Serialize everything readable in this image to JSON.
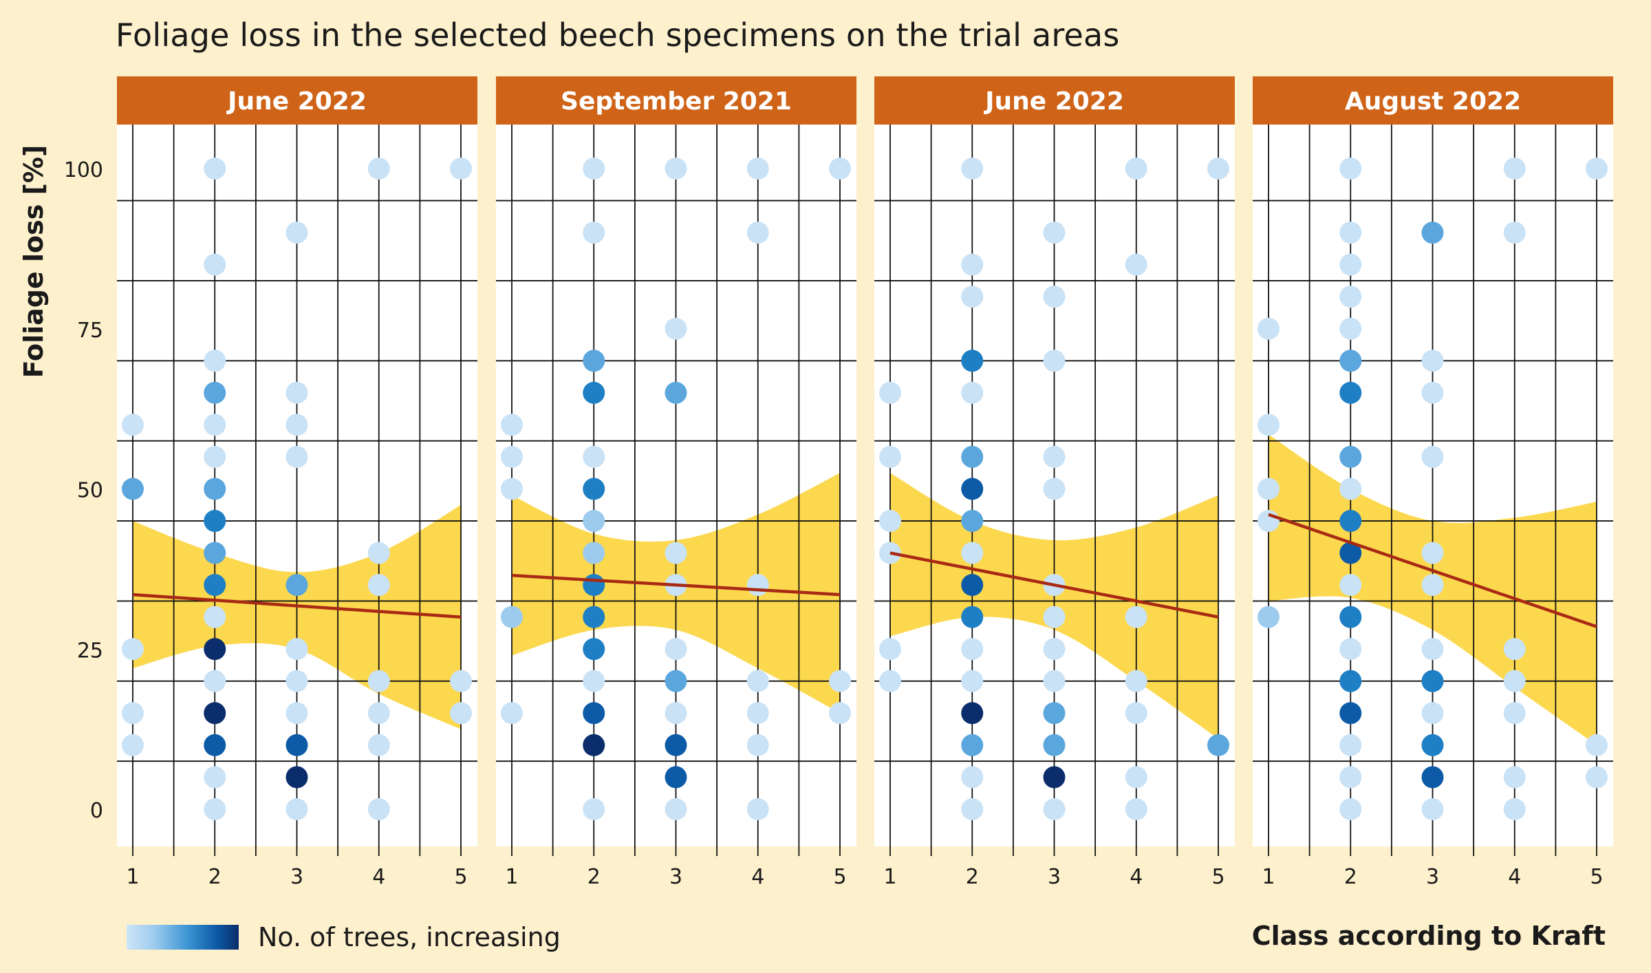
{
  "title": "Foliage loss in the selected beech specimens on the trial areas",
  "legend": {
    "label": "No. of trees, increasing"
  },
  "colors": {
    "background": "#fdf0cc",
    "header": "#cf6318",
    "band": "#fcd84e",
    "trend": "#a82a14",
    "plot_bg": "#ffffff",
    "grid": "#111111",
    "scale": [
      "#c9e2f6",
      "#9ccbee",
      "#5aa6dd",
      "#1e7fc5",
      "#0d5aa6",
      "#0b2d6b"
    ]
  },
  "chart_data": {
    "type": "scatter",
    "title": "Foliage loss in the selected beech specimens on the trial areas",
    "ylabel": "Foliage loss [%]",
    "xlabel": "Class according to Kraft",
    "ylim": [
      -5,
      107
    ],
    "xlim": [
      0.8,
      5.2
    ],
    "x_ticks": [
      1,
      2,
      3,
      4,
      5
    ],
    "y_ticks": [
      0,
      25,
      50,
      75,
      100
    ],
    "color_legend": "No. of trees, increasing",
    "panels": [
      {
        "name": "June 2022",
        "trend": [
          [
            1,
            33.5
          ],
          [
            5,
            30
          ]
        ],
        "band_upper": [
          [
            1,
            45
          ],
          [
            2,
            40
          ],
          [
            3,
            37
          ],
          [
            4,
            40
          ],
          [
            5,
            47.5
          ]
        ],
        "band_lower": [
          [
            1,
            22
          ],
          [
            2,
            25.5
          ],
          [
            3,
            25
          ],
          [
            4,
            18
          ],
          [
            5,
            12.5
          ]
        ],
        "points": [
          [
            1,
            60,
            0
          ],
          [
            1,
            50,
            2
          ],
          [
            1,
            25,
            0
          ],
          [
            1,
            15,
            0
          ],
          [
            1,
            10,
            0
          ],
          [
            2,
            100,
            0
          ],
          [
            2,
            85,
            0
          ],
          [
            2,
            70,
            0
          ],
          [
            2,
            65,
            2
          ],
          [
            2,
            60,
            0
          ],
          [
            2,
            55,
            0
          ],
          [
            2,
            50,
            2
          ],
          [
            2,
            45,
            3
          ],
          [
            2,
            40,
            2
          ],
          [
            2,
            35,
            3
          ],
          [
            2,
            30,
            0
          ],
          [
            2,
            25,
            5
          ],
          [
            2,
            20,
            0
          ],
          [
            2,
            15,
            5
          ],
          [
            2,
            10,
            4
          ],
          [
            2,
            5,
            0
          ],
          [
            2,
            0,
            0
          ],
          [
            3,
            90,
            0
          ],
          [
            3,
            65,
            0
          ],
          [
            3,
            60,
            0
          ],
          [
            3,
            55,
            0
          ],
          [
            3,
            35,
            2
          ],
          [
            3,
            25,
            0
          ],
          [
            3,
            20,
            0
          ],
          [
            3,
            15,
            0
          ],
          [
            3,
            10,
            4
          ],
          [
            3,
            5,
            5
          ],
          [
            3,
            0,
            0
          ],
          [
            4,
            100,
            0
          ],
          [
            4,
            40,
            0
          ],
          [
            4,
            35,
            0
          ],
          [
            4,
            20,
            0
          ],
          [
            4,
            15,
            0
          ],
          [
            4,
            10,
            0
          ],
          [
            4,
            0,
            0
          ],
          [
            5,
            100,
            0
          ],
          [
            5,
            20,
            0
          ],
          [
            5,
            15,
            0
          ]
        ]
      },
      {
        "name": "September 2021",
        "trend": [
          [
            1,
            36.5
          ],
          [
            5,
            33.5
          ]
        ],
        "band_upper": [
          [
            1,
            49
          ],
          [
            2,
            43
          ],
          [
            3,
            42
          ],
          [
            4,
            46
          ],
          [
            5,
            52.5
          ]
        ],
        "band_lower": [
          [
            1,
            24
          ],
          [
            2,
            28
          ],
          [
            3,
            28
          ],
          [
            4,
            22
          ],
          [
            5,
            15
          ]
        ],
        "points": [
          [
            1,
            60,
            0
          ],
          [
            1,
            55,
            0
          ],
          [
            1,
            50,
            0
          ],
          [
            1,
            30,
            1
          ],
          [
            1,
            15,
            0
          ],
          [
            2,
            100,
            0
          ],
          [
            2,
            90,
            0
          ],
          [
            2,
            70,
            2
          ],
          [
            2,
            65,
            3
          ],
          [
            2,
            55,
            0
          ],
          [
            2,
            50,
            3
          ],
          [
            2,
            45,
            1
          ],
          [
            2,
            40,
            1
          ],
          [
            2,
            35,
            3
          ],
          [
            2,
            30,
            3
          ],
          [
            2,
            25,
            3
          ],
          [
            2,
            20,
            0
          ],
          [
            2,
            15,
            4
          ],
          [
            2,
            10,
            5
          ],
          [
            2,
            0,
            0
          ],
          [
            3,
            100,
            0
          ],
          [
            3,
            75,
            0
          ],
          [
            3,
            65,
            2
          ],
          [
            3,
            40,
            0
          ],
          [
            3,
            35,
            0
          ],
          [
            3,
            25,
            0
          ],
          [
            3,
            20,
            2
          ],
          [
            3,
            15,
            0
          ],
          [
            3,
            10,
            4
          ],
          [
            3,
            5,
            4
          ],
          [
            3,
            0,
            0
          ],
          [
            4,
            100,
            0
          ],
          [
            4,
            90,
            0
          ],
          [
            4,
            35,
            0
          ],
          [
            4,
            20,
            0
          ],
          [
            4,
            15,
            0
          ],
          [
            4,
            10,
            0
          ],
          [
            4,
            0,
            0
          ],
          [
            5,
            100,
            0
          ],
          [
            5,
            20,
            0
          ],
          [
            5,
            15,
            0
          ]
        ]
      },
      {
        "name": "June 2022",
        "trend": [
          [
            1,
            40
          ],
          [
            5,
            30
          ]
        ],
        "band_upper": [
          [
            1,
            52.5
          ],
          [
            2,
            45
          ],
          [
            3,
            42
          ],
          [
            4,
            44
          ],
          [
            5,
            49
          ]
        ],
        "band_lower": [
          [
            1,
            27
          ],
          [
            2,
            30
          ],
          [
            3,
            28
          ],
          [
            4,
            20
          ],
          [
            5,
            11
          ]
        ],
        "points": [
          [
            1,
            65,
            0
          ],
          [
            1,
            55,
            0
          ],
          [
            1,
            45,
            0
          ],
          [
            1,
            40,
            0
          ],
          [
            1,
            25,
            0
          ],
          [
            1,
            20,
            0
          ],
          [
            2,
            100,
            0
          ],
          [
            2,
            85,
            0
          ],
          [
            2,
            80,
            0
          ],
          [
            2,
            70,
            3
          ],
          [
            2,
            65,
            0
          ],
          [
            2,
            55,
            2
          ],
          [
            2,
            50,
            4
          ],
          [
            2,
            45,
            2
          ],
          [
            2,
            40,
            0
          ],
          [
            2,
            35,
            4
          ],
          [
            2,
            30,
            3
          ],
          [
            2,
            25,
            0
          ],
          [
            2,
            20,
            0
          ],
          [
            2,
            15,
            5
          ],
          [
            2,
            10,
            2
          ],
          [
            2,
            5,
            0
          ],
          [
            2,
            0,
            0
          ],
          [
            3,
            90,
            0
          ],
          [
            3,
            80,
            0
          ],
          [
            3,
            70,
            0
          ],
          [
            3,
            55,
            0
          ],
          [
            3,
            50,
            0
          ],
          [
            3,
            35,
            0
          ],
          [
            3,
            30,
            0
          ],
          [
            3,
            25,
            0
          ],
          [
            3,
            20,
            0
          ],
          [
            3,
            15,
            2
          ],
          [
            3,
            10,
            2
          ],
          [
            3,
            5,
            5
          ],
          [
            3,
            0,
            0
          ],
          [
            4,
            100,
            0
          ],
          [
            4,
            85,
            0
          ],
          [
            4,
            30,
            0
          ],
          [
            4,
            20,
            0
          ],
          [
            4,
            15,
            0
          ],
          [
            4,
            5,
            0
          ],
          [
            4,
            0,
            0
          ],
          [
            5,
            100,
            0
          ],
          [
            5,
            10,
            2
          ]
        ]
      },
      {
        "name": "August 2022",
        "trend": [
          [
            1,
            46
          ],
          [
            5,
            28.5
          ]
        ],
        "band_upper": [
          [
            1,
            58.5
          ],
          [
            2,
            50
          ],
          [
            3,
            45
          ],
          [
            4,
            45.5
          ],
          [
            5,
            48
          ]
        ],
        "band_lower": [
          [
            1,
            32.5
          ],
          [
            2,
            33
          ],
          [
            3,
            28
          ],
          [
            4,
            19
          ],
          [
            5,
            10
          ]
        ],
        "points": [
          [
            1,
            75,
            0
          ],
          [
            1,
            60,
            0
          ],
          [
            1,
            50,
            0
          ],
          [
            1,
            45,
            0
          ],
          [
            1,
            30,
            1
          ],
          [
            2,
            100,
            0
          ],
          [
            2,
            90,
            0
          ],
          [
            2,
            85,
            0
          ],
          [
            2,
            80,
            0
          ],
          [
            2,
            75,
            0
          ],
          [
            2,
            70,
            2
          ],
          [
            2,
            65,
            3
          ],
          [
            2,
            55,
            2
          ],
          [
            2,
            50,
            0
          ],
          [
            2,
            45,
            3
          ],
          [
            2,
            40,
            4
          ],
          [
            2,
            35,
            0
          ],
          [
            2,
            30,
            3
          ],
          [
            2,
            25,
            0
          ],
          [
            2,
            20,
            3
          ],
          [
            2,
            15,
            4
          ],
          [
            2,
            10,
            0
          ],
          [
            2,
            5,
            0
          ],
          [
            2,
            0,
            0
          ],
          [
            3,
            90,
            2
          ],
          [
            3,
            70,
            0
          ],
          [
            3,
            65,
            0
          ],
          [
            3,
            55,
            0
          ],
          [
            3,
            40,
            0
          ],
          [
            3,
            35,
            0
          ],
          [
            3,
            25,
            0
          ],
          [
            3,
            20,
            3
          ],
          [
            3,
            15,
            0
          ],
          [
            3,
            10,
            3
          ],
          [
            3,
            5,
            4
          ],
          [
            3,
            0,
            0
          ],
          [
            4,
            100,
            0
          ],
          [
            4,
            90,
            0
          ],
          [
            4,
            25,
            0
          ],
          [
            4,
            20,
            0
          ],
          [
            4,
            15,
            0
          ],
          [
            4,
            5,
            0
          ],
          [
            4,
            0,
            0
          ],
          [
            5,
            100,
            0
          ],
          [
            5,
            10,
            0
          ],
          [
            5,
            5,
            0
          ]
        ]
      }
    ]
  }
}
